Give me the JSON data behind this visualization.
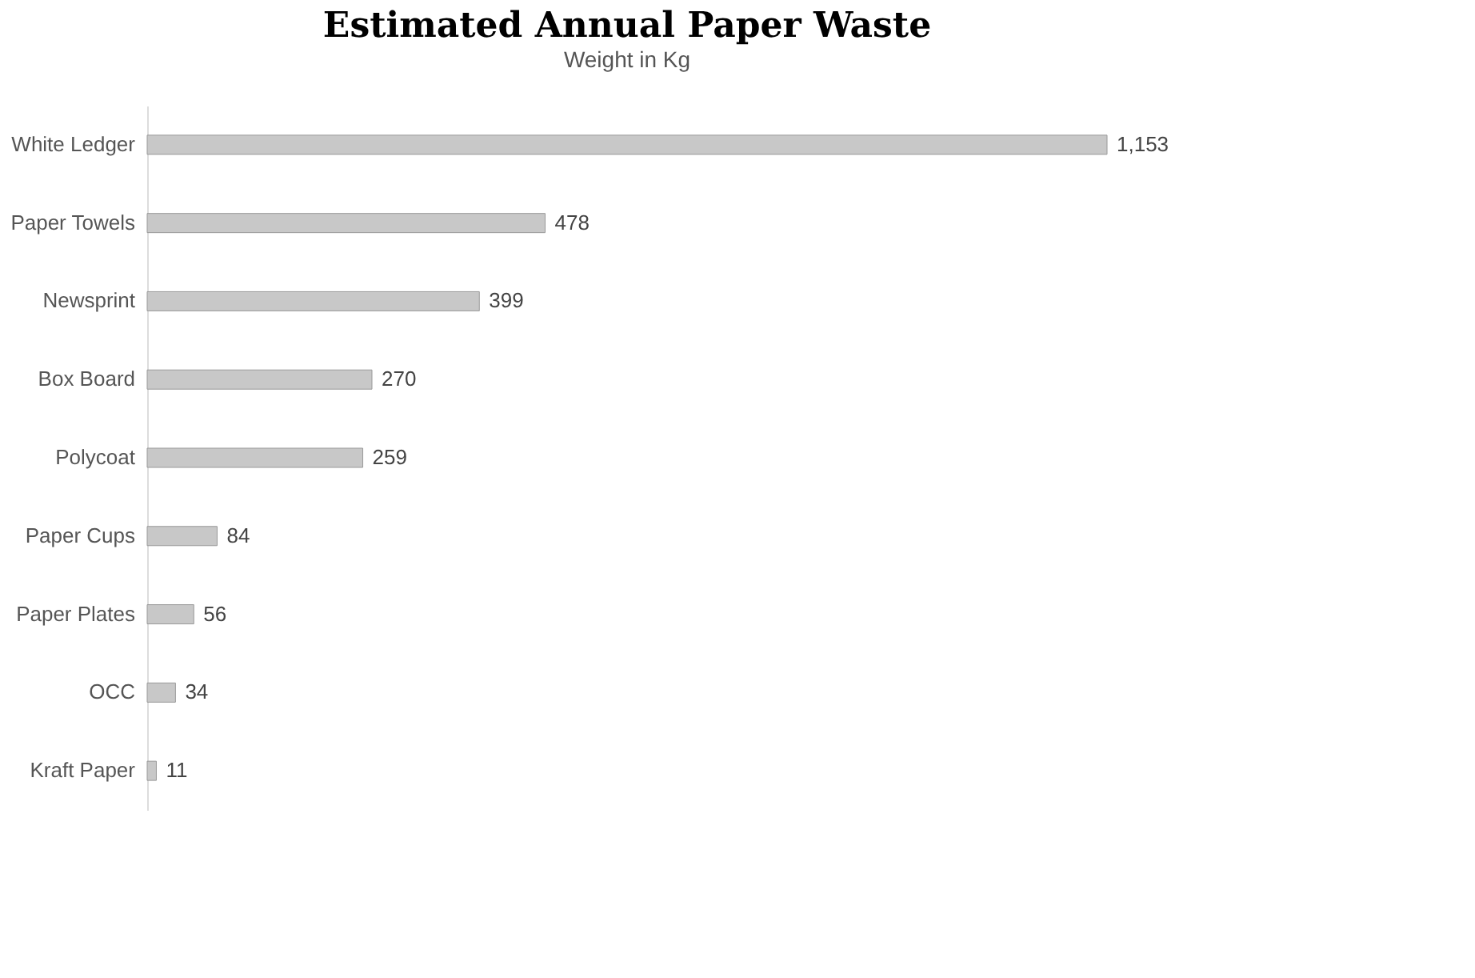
{
  "chart_data": {
    "type": "bar",
    "orientation": "horizontal",
    "title": "Estimated Annual Paper Waste",
    "subtitle": "Weight in Kg",
    "categories": [
      "White Ledger",
      "Paper Towels",
      "Newsprint",
      "Box Board",
      "Polycoat",
      "Paper Cups",
      "Paper Plates",
      "OCC",
      "Kraft Paper"
    ],
    "values": [
      1153,
      478,
      399,
      270,
      259,
      84,
      56,
      34,
      11
    ],
    "value_labels": [
      "1,153",
      "478",
      "399",
      "270",
      "259",
      "84",
      "56",
      "34",
      "11"
    ],
    "color": "#c8c8c8",
    "grid": false
  }
}
